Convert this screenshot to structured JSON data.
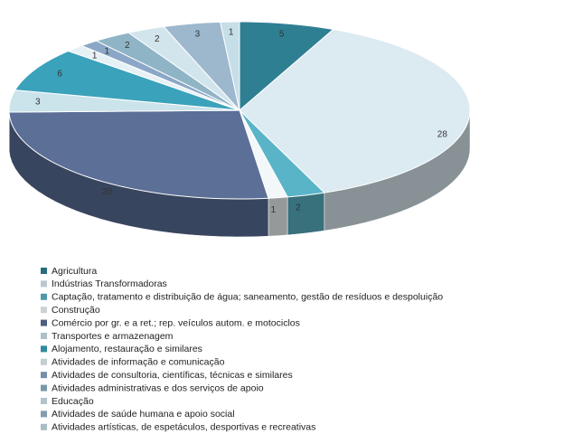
{
  "chart_data": {
    "type": "pie",
    "categories": [
      "Agricultura",
      "Indústrias Transformadoras",
      "Captação, tratamento e distribuição de água; saneamento, gestão de resíduos e despoluição",
      "Construção",
      "Comércio por gr. e a ret.; rep. veículos autom. e motociclos",
      "Transportes e armazenagem",
      "Alojamento, restauração e similares",
      "Atividades de informação e comunicação",
      "Atividades de consultoria, científicas, técnicas e similares",
      "Atividades administrativas e dos serviços de apoio",
      "Educação",
      "Atividades de saúde humana e apoio social",
      "Atividades artísticas, de espetáculos, desportivas e recreativas"
    ],
    "values": [
      5,
      28,
      2,
      1,
      20,
      3,
      6,
      1,
      1,
      2,
      2,
      3,
      1
    ],
    "colors": [
      "#2f7f93",
      "#dceaf1",
      "#5ab4c8",
      "#f2f7f9",
      "#5b6f97",
      "#cbe3ea",
      "#3ba2bb",
      "#e6f1f5",
      "#8ba7c7",
      "#8fb4c5",
      "#d2e5ed",
      "#9db8cd",
      "#c6dee7"
    ],
    "legend": "bottom"
  }
}
